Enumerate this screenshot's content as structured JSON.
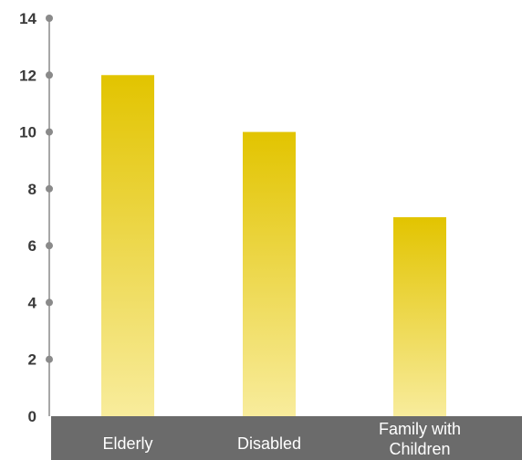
{
  "chart_data": {
    "type": "bar",
    "categories": [
      "Elderly",
      "Disabled",
      "Family with Children"
    ],
    "category_lines": [
      [
        "Elderly"
      ],
      [
        "Disabled"
      ],
      [
        "Family with",
        "Children"
      ]
    ],
    "values": [
      12,
      10,
      7
    ],
    "ylim": [
      0,
      14
    ],
    "yticks": [
      0,
      2,
      4,
      6,
      8,
      10,
      12,
      14
    ],
    "ytick_labels": [
      "0",
      "2",
      "4",
      "6",
      "8",
      "10",
      "12",
      "14"
    ],
    "grid": false,
    "legend": "none",
    "title": "",
    "xlabel": "",
    "ylabel": ""
  },
  "colors": {
    "bar_top": "#e2c400",
    "bar_bottom": "#f8ec9c",
    "axis": "#8a8a8a",
    "category_band": "#6b6b6b",
    "tick_text": "#3a3a3a",
    "category_text": "#ffffff"
  }
}
